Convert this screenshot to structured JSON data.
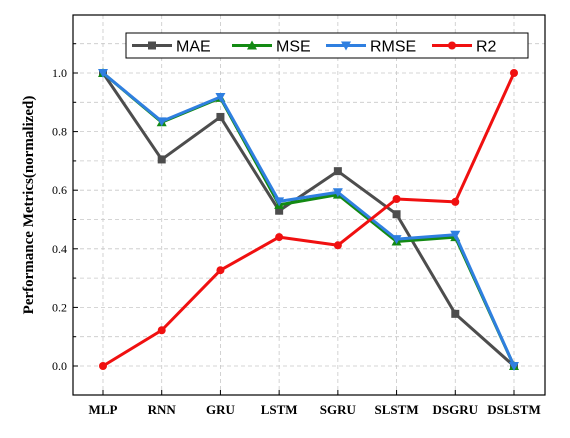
{
  "chart_data": {
    "type": "line",
    "categories": [
      "MLP",
      "RNN",
      "GRU",
      "LSTM",
      "SGRU",
      "SLSTM",
      "DSGRU",
      "DSLSTM"
    ],
    "ylabel": "Performance Metrics(normalized)",
    "xlabel": "",
    "ylim": [
      0.0,
      1.2
    ],
    "yticks": [
      0.0,
      0.2,
      0.4,
      0.6,
      0.8,
      1.0
    ],
    "ytick_labels": [
      "0.0",
      "0.2",
      "0.4",
      "0.6",
      "0.8",
      "1.0"
    ],
    "grid": true,
    "legend_position": "top",
    "series": [
      {
        "name": "MAE",
        "color": "#4d4d4d",
        "marker": "square",
        "values": [
          1.0,
          0.705,
          0.85,
          0.53,
          0.665,
          0.518,
          0.178,
          0.0
        ]
      },
      {
        "name": "MSE",
        "color": "#138a13",
        "marker": "triangle-up",
        "values": [
          1.0,
          0.832,
          0.915,
          0.55,
          0.585,
          0.425,
          0.44,
          0.0
        ]
      },
      {
        "name": "RMSE",
        "color": "#2f7fe0",
        "marker": "triangle-down",
        "values": [
          1.0,
          0.835,
          0.918,
          0.562,
          0.593,
          0.433,
          0.448,
          0.0
        ]
      },
      {
        "name": "R2",
        "color": "#f01010",
        "marker": "circle",
        "values": [
          0.0,
          0.122,
          0.327,
          0.44,
          0.412,
          0.57,
          0.56,
          1.0
        ]
      }
    ]
  }
}
